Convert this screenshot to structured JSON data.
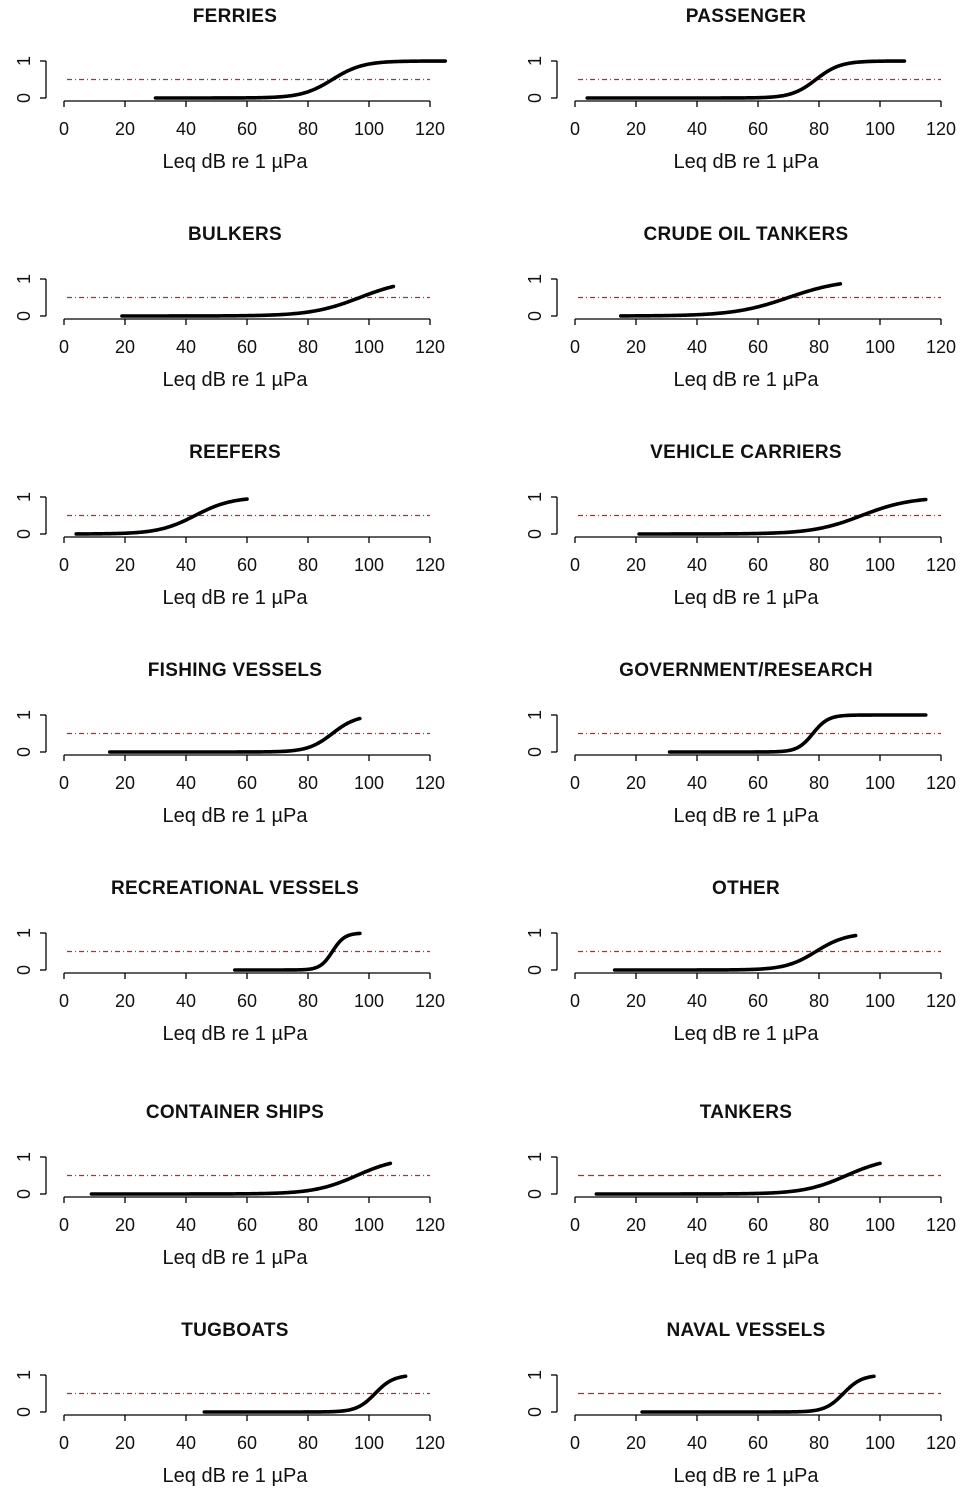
{
  "chart_data": [
    {
      "type": "line",
      "title": "FERRIES",
      "xlabel": "Leq dB re 1 µPa",
      "xlim": [
        0,
        120
      ],
      "ylim": [
        0,
        1
      ],
      "x_ticks": [
        "0",
        "20",
        "40",
        "60",
        "80",
        "100",
        "120"
      ],
      "y_ticks": [
        "0",
        "1"
      ],
      "threshold": 0.5,
      "curve": {
        "start": 30,
        "end": 125,
        "midpoint": 88,
        "width": 5
      }
    },
    {
      "type": "line",
      "title": "PASSENGER",
      "xlabel": "Leq dB re 1 µPa",
      "xlim": [
        0,
        120
      ],
      "ylim": [
        0,
        1
      ],
      "x_ticks": [
        "0",
        "20",
        "40",
        "60",
        "80",
        "100",
        "120"
      ],
      "y_ticks": [
        "0",
        "1"
      ],
      "threshold": 0.5,
      "curve": {
        "start": 4,
        "end": 108,
        "midpoint": 79,
        "width": 4
      }
    },
    {
      "type": "line",
      "title": "BULKERS",
      "xlabel": "Leq dB re 1 µPa",
      "xlim": [
        0,
        120
      ],
      "ylim": [
        0,
        1
      ],
      "x_ticks": [
        "0",
        "20",
        "40",
        "60",
        "80",
        "100",
        "120"
      ],
      "y_ticks": [
        "0",
        "1"
      ],
      "threshold": 0.5,
      "curve": {
        "start": 19,
        "end": 108,
        "midpoint": 97,
        "width": 8
      }
    },
    {
      "type": "line",
      "title": "CRUDE OIL TANKERS",
      "xlabel": "Leq dB re 1 µPa",
      "xlim": [
        0,
        120
      ],
      "ylim": [
        0,
        1
      ],
      "x_ticks": [
        "0",
        "20",
        "40",
        "60",
        "80",
        "100",
        "120"
      ],
      "y_ticks": [
        "0",
        "1"
      ],
      "threshold": 0.5,
      "curve": {
        "start": 15,
        "end": 87,
        "midpoint": 70,
        "width": 9
      }
    },
    {
      "type": "line",
      "title": "REEFERS",
      "xlabel": "Leq dB re 1 µPa",
      "xlim": [
        0,
        120
      ],
      "ylim": [
        0,
        1
      ],
      "x_ticks": [
        "0",
        "20",
        "40",
        "60",
        "80",
        "100",
        "120"
      ],
      "y_ticks": [
        "0",
        "1"
      ],
      "threshold": 0.5,
      "curve": {
        "start": 4,
        "end": 60,
        "midpoint": 43,
        "width": 6
      }
    },
    {
      "type": "line",
      "title": "VEHICLE CARRIERS",
      "xlabel": "Leq dB re 1 µPa",
      "xlim": [
        0,
        120
      ],
      "ylim": [
        0,
        1
      ],
      "x_ticks": [
        "0",
        "20",
        "40",
        "60",
        "80",
        "100",
        "120"
      ],
      "y_ticks": [
        "0",
        "1"
      ],
      "threshold": 0.5,
      "curve": {
        "start": 21,
        "end": 115,
        "midpoint": 94,
        "width": 8
      }
    },
    {
      "type": "line",
      "title": "FISHING VESSELS",
      "xlabel": "Leq dB re 1 µPa",
      "xlim": [
        0,
        120
      ],
      "ylim": [
        0,
        1
      ],
      "x_ticks": [
        "0",
        "20",
        "40",
        "60",
        "80",
        "100",
        "120"
      ],
      "y_ticks": [
        "0",
        "1"
      ],
      "threshold": 0.5,
      "curve": {
        "start": 15,
        "end": 97,
        "midpoint": 88,
        "width": 4
      }
    },
    {
      "type": "line",
      "title": "GOVERNMENT/RESEARCH",
      "xlabel": "Leq dB re 1 µPa",
      "xlim": [
        0,
        120
      ],
      "ylim": [
        0,
        1
      ],
      "x_ticks": [
        "0",
        "20",
        "40",
        "60",
        "80",
        "100",
        "120"
      ],
      "y_ticks": [
        "0",
        "1"
      ],
      "threshold": 0.5,
      "curve": {
        "start": 31,
        "end": 115,
        "midpoint": 78,
        "width": 2.5
      }
    },
    {
      "type": "line",
      "title": "RECREATIONAL VESSELS",
      "xlabel": "Leq dB re 1 µPa",
      "xlim": [
        0,
        120
      ],
      "ylim": [
        0,
        1
      ],
      "x_ticks": [
        "0",
        "20",
        "40",
        "60",
        "80",
        "100",
        "120"
      ],
      "y_ticks": [
        "0",
        "1"
      ],
      "threshold": 0.5,
      "curve": {
        "start": 56,
        "end": 97,
        "midpoint": 88,
        "width": 2
      }
    },
    {
      "type": "line",
      "title": "OTHER",
      "xlabel": "Leq dB re 1 µPa",
      "xlim": [
        0,
        120
      ],
      "ylim": [
        0,
        1
      ],
      "x_ticks": [
        "0",
        "20",
        "40",
        "60",
        "80",
        "100",
        "120"
      ],
      "y_ticks": [
        "0",
        "1"
      ],
      "threshold": 0.5,
      "curve": {
        "start": 13,
        "end": 92,
        "midpoint": 79,
        "width": 5
      }
    },
    {
      "type": "line",
      "title": "CONTAINER SHIPS",
      "xlabel": "Leq dB re 1 µPa",
      "xlim": [
        0,
        120
      ],
      "ylim": [
        0,
        1
      ],
      "x_ticks": [
        "0",
        "20",
        "40",
        "60",
        "80",
        "100",
        "120"
      ],
      "y_ticks": [
        "0",
        "1"
      ],
      "threshold": 0.5,
      "curve": {
        "start": 9,
        "end": 107,
        "midpoint": 96,
        "width": 7
      }
    },
    {
      "type": "line",
      "title": "TANKERS",
      "xlabel": "Leq dB re 1 µPa",
      "xlim": [
        0,
        120
      ],
      "ylim": [
        0,
        1
      ],
      "x_ticks": [
        "0",
        "20",
        "40",
        "60",
        "80",
        "100",
        "120"
      ],
      "y_ticks": [
        "0",
        "1"
      ],
      "threshold": 0.5,
      "threshold_style": "dashed",
      "curve": {
        "start": 7,
        "end": 100,
        "midpoint": 89,
        "width": 7
      }
    },
    {
      "type": "line",
      "title": "TUGBOATS",
      "xlabel": "Leq dB re 1 µPa",
      "xlim": [
        0,
        120
      ],
      "ylim": [
        0,
        1
      ],
      "x_ticks": [
        "0",
        "20",
        "40",
        "60",
        "80",
        "100",
        "120"
      ],
      "y_ticks": [
        "0",
        "1"
      ],
      "threshold": 0.5,
      "curve": {
        "start": 46,
        "end": 112,
        "midpoint": 102,
        "width": 3
      }
    },
    {
      "type": "line",
      "title": "NAVAL VESSELS",
      "xlabel": "Leq dB re 1 µPa",
      "xlim": [
        0,
        120
      ],
      "ylim": [
        0,
        1
      ],
      "x_ticks": [
        "0",
        "20",
        "40",
        "60",
        "80",
        "100",
        "120"
      ],
      "y_ticks": [
        "0",
        "1"
      ],
      "threshold": 0.5,
      "threshold_style": "dashed",
      "curve": {
        "start": 22,
        "end": 98,
        "midpoint": 88,
        "width": 3
      }
    }
  ]
}
